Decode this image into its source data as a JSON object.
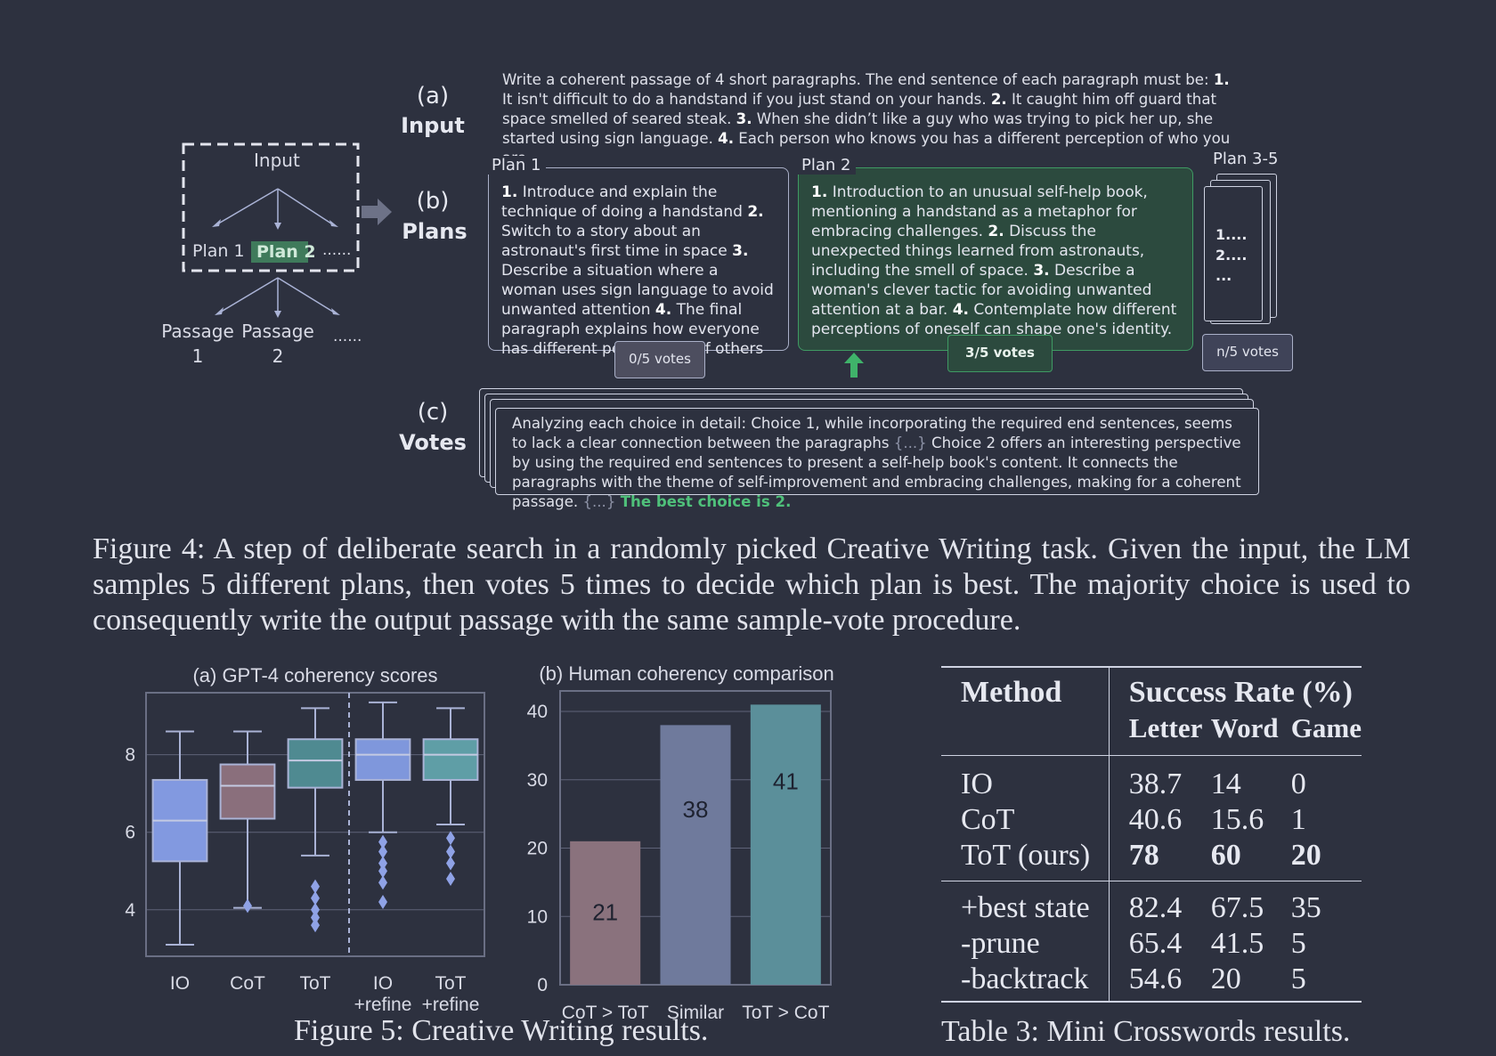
{
  "figure4": {
    "diagram": {
      "input_label": "Input",
      "plan1_label": "Plan 1",
      "plan2_label": "Plan 2",
      "plan_more": "......",
      "passage1_label": [
        "Passage",
        "1"
      ],
      "passage2_label": [
        "Passage",
        "2"
      ],
      "passage_more": "......"
    },
    "sections": {
      "input": {
        "letter": "(a)",
        "name": "Input"
      },
      "plans": {
        "letter": "(b)",
        "name": "Plans"
      },
      "votes": {
        "letter": "(c)",
        "name": "Votes"
      }
    },
    "input_text": [
      {
        "t": "Write a coherent passage of 4 short paragraphs. The end sentence of each paragraph must be: "
      },
      {
        "t": "1.",
        "b": true
      },
      {
        "t": " It isn't difficult to do a handstand if you just stand on your hands. "
      },
      {
        "t": "2.",
        "b": true
      },
      {
        "t": " It caught him off guard that space smelled of seared steak. "
      },
      {
        "t": "3.",
        "b": true
      },
      {
        "t": " When she didn’t like a guy who was trying to pick her up, she started using sign language. "
      },
      {
        "t": "4.",
        "b": true
      },
      {
        "t": " Each person who knows you has a different perception of who you are."
      }
    ],
    "plan1": {
      "title": "Plan 1",
      "text": [
        {
          "t": "1.",
          "b": true
        },
        {
          "t": " Introduce and explain the technique of doing a handstand "
        },
        {
          "t": "2.",
          "b": true
        },
        {
          "t": " Switch to a story about an astronaut's first time in space "
        },
        {
          "t": "3.",
          "b": true
        },
        {
          "t": " Describe a situation where a woman uses sign language to avoid unwanted attention "
        },
        {
          "t": "4.",
          "b": true
        },
        {
          "t": " The final paragraph explains how everyone has different perceptions of others"
        }
      ],
      "votes": "0/5 votes"
    },
    "plan2": {
      "title": "Plan 2",
      "text": [
        {
          "t": "1.",
          "b": true
        },
        {
          "t": " Introduction to an unusual self-help book, mentioning a handstand as a metaphor for embracing challenges. "
        },
        {
          "t": "2.",
          "b": true
        },
        {
          "t": " Discuss the unexpected things learned from astronauts, including the smell of space. "
        },
        {
          "t": "3.",
          "b": true
        },
        {
          "t": " Describe a woman's clever tactic for avoiding unwanted attention at a bar. "
        },
        {
          "t": "4.",
          "b": true
        },
        {
          "t": " Contemplate how different perceptions of oneself can shape one's identity."
        }
      ],
      "votes": "3/5 votes"
    },
    "plan35": {
      "title": "Plan 3-5",
      "lines": [
        "1....",
        "2....",
        "..."
      ],
      "votes": "n/5 votes"
    },
    "votes_text": [
      {
        "t": "Analyzing each choice in detail:  Choice 1, while incorporating the required end sentences, seems to lack a clear connection between the paragraphs "
      },
      {
        "t": "{...}",
        "dim": true
      },
      {
        "t": " Choice 2 offers an interesting perspective by using the required end sentences to present a self-help book's content. It connects the paragraphs with the theme of self-improvement and embracing challenges, making for a coherent passage. "
      },
      {
        "t": "{...}",
        "dim": true
      },
      {
        "t": " "
      },
      {
        "t": "The best choice is 2.",
        "g": true
      }
    ],
    "caption": "Figure 4: A step of deliberate search in a randomly picked Creative Writing task. Given the input, the LM samples 5 different plans, then votes 5 times to decide which plan is best. The majority choice is used to consequently write the output passage with the same sample-vote procedure."
  },
  "chart_data": [
    {
      "type": "box",
      "title": "(a) GPT-4 coherency scores",
      "categories": [
        "IO",
        "CoT",
        "ToT",
        "IO +refine",
        "ToT +refine"
      ],
      "category_labels": [
        [
          "IO"
        ],
        [
          "CoT"
        ],
        [
          "ToT"
        ],
        [
          "IO",
          "+refine"
        ],
        [
          "ToT",
          "+refine"
        ]
      ],
      "boxes": [
        {
          "whisker_low": 3.1,
          "q1": 5.25,
          "median": 6.3,
          "q3": 7.35,
          "whisker_high": 8.6,
          "fliers": []
        },
        {
          "whisker_low": 4.05,
          "q1": 6.35,
          "median": 7.2,
          "q3": 7.75,
          "whisker_high": 8.6,
          "fliers": [
            4.1
          ]
        },
        {
          "whisker_low": 5.4,
          "q1": 7.15,
          "median": 7.85,
          "q3": 8.4,
          "whisker_high": 9.2,
          "fliers": [
            3.6,
            3.8,
            4.0,
            4.3,
            4.6
          ]
        },
        {
          "whisker_low": 6.0,
          "q1": 7.35,
          "median": 8.0,
          "q3": 8.4,
          "whisker_high": 9.35,
          "fliers": [
            4.2,
            4.7,
            5.0,
            5.2,
            5.5,
            5.75
          ]
        },
        {
          "whisker_low": 6.2,
          "q1": 7.35,
          "median": 8.0,
          "q3": 8.4,
          "whisker_high": 9.2,
          "fliers": [
            4.8,
            5.2,
            5.5,
            5.85
          ]
        }
      ],
      "colors": [
        "#8299e0",
        "#8a6f7c",
        "#4f8a91",
        "#7f97dc",
        "#5f9ea6"
      ],
      "yticks": [
        4,
        6,
        8
      ],
      "ylim": [
        2.8,
        9.6
      ]
    },
    {
      "type": "bar",
      "title": "(b) Human coherency comparison",
      "categories": [
        "CoT > ToT",
        "Similar",
        "ToT > CoT"
      ],
      "values": [
        21,
        38,
        41
      ],
      "colors": [
        "#8a727d",
        "#6f7a9c",
        "#5b8f9a"
      ],
      "yticks": [
        0,
        10,
        20,
        30,
        40
      ],
      "ylim": [
        0,
        43
      ]
    }
  ],
  "figure5_caption": "Figure 5: Creative Writing results.",
  "table3": {
    "method_header": "Method",
    "group_header": "Success Rate (%)",
    "sub_headers": [
      "Letter",
      "Word",
      "Game"
    ],
    "rows_a": [
      {
        "method": "IO",
        "vals": [
          "38.7",
          "14",
          "0"
        ],
        "bold": false
      },
      {
        "method": "CoT",
        "vals": [
          "40.6",
          "15.6",
          "1"
        ],
        "bold": false
      },
      {
        "method": "ToT (ours)",
        "vals": [
          "78",
          "60",
          "20"
        ],
        "bold": true
      }
    ],
    "rows_b": [
      {
        "method": "+best state",
        "vals": [
          "82.4",
          "67.5",
          "35"
        ]
      },
      {
        "method": "-prune",
        "vals": [
          "65.4",
          "41.5",
          "5"
        ]
      },
      {
        "method": "-backtrack",
        "vals": [
          "54.6",
          "20",
          "5"
        ]
      }
    ],
    "caption": "Table 3: Mini Crosswords results."
  }
}
